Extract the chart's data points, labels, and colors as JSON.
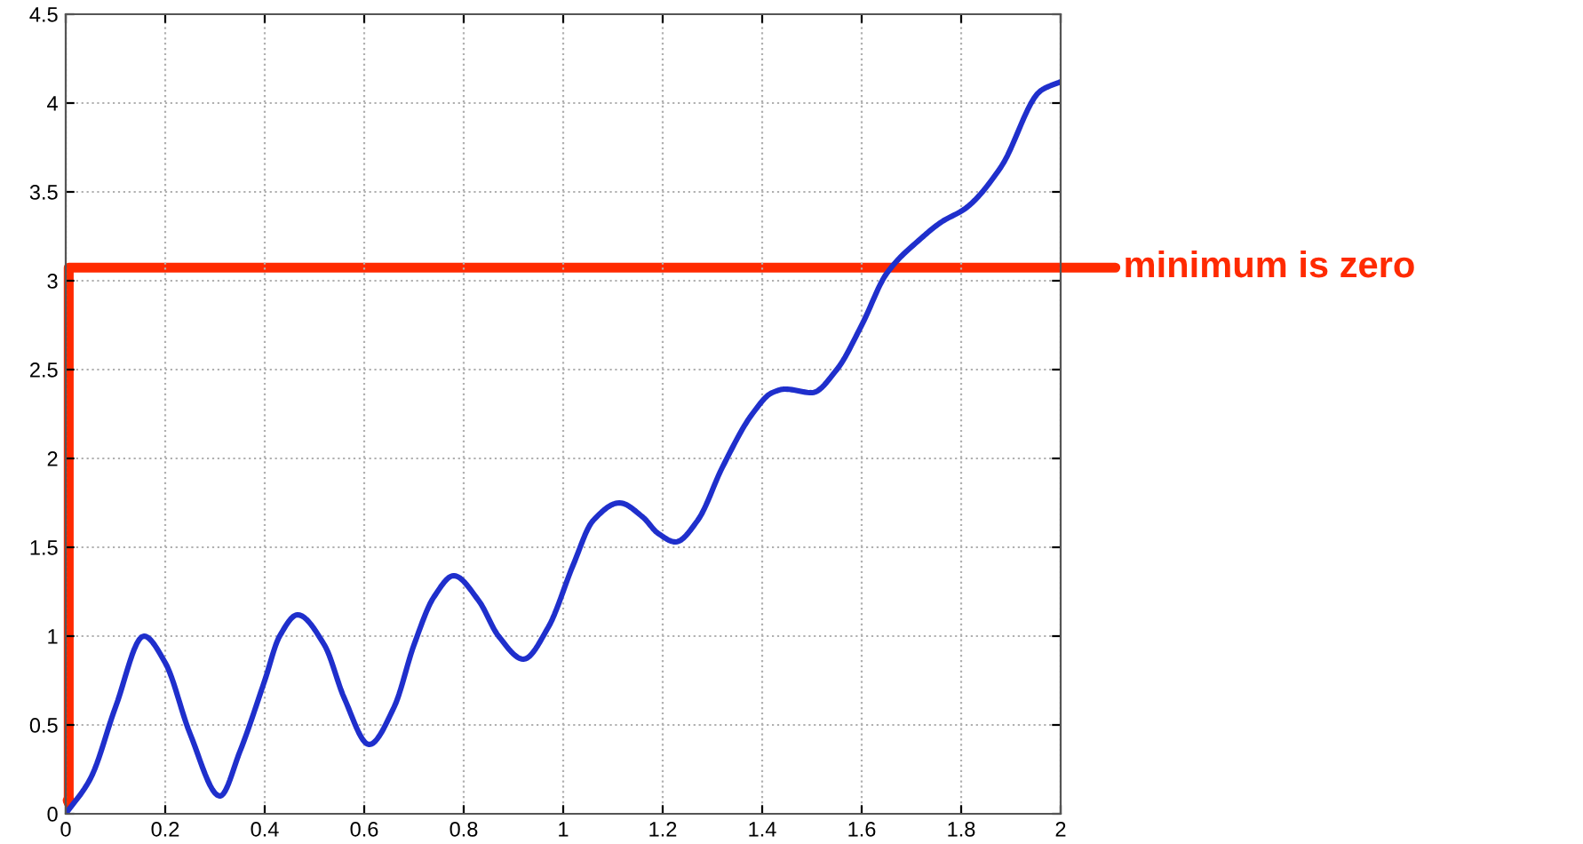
{
  "chart_data": {
    "type": "line",
    "x": [
      0,
      0.05,
      0.1,
      0.157,
      0.2,
      0.25,
      0.31,
      0.35,
      0.4,
      0.43,
      0.466,
      0.52,
      0.56,
      0.61,
      0.66,
      0.7,
      0.74,
      0.78,
      0.83,
      0.87,
      0.92,
      0.97,
      1.02,
      1.06,
      1.113,
      1.16,
      1.19,
      1.226,
      1.27,
      1.32,
      1.38,
      1.42,
      1.446,
      1.5,
      1.55,
      1.6,
      1.65,
      1.72,
      1.76,
      1.81,
      1.88,
      1.96,
      2.0
    ],
    "series": [
      {
        "color": "#1f2fcc",
        "values": [
          0,
          0.2,
          0.6,
          1.0,
          0.85,
          0.45,
          0.1,
          0.35,
          0.75,
          1.0,
          1.12,
          0.95,
          0.65,
          0.39,
          0.6,
          0.95,
          1.22,
          1.34,
          1.2,
          1.0,
          0.87,
          1.05,
          1.4,
          1.65,
          1.75,
          1.67,
          1.58,
          1.53,
          1.65,
          1.95,
          2.25,
          2.37,
          2.39,
          2.37,
          2.5,
          2.75,
          3.04,
          3.24,
          3.33,
          3.41,
          3.64,
          4.07,
          4.12
        ]
      }
    ],
    "xlim": [
      0,
      2
    ],
    "xticks": [
      0,
      0.2,
      0.4,
      0.6,
      0.8,
      1,
      1.2,
      1.4,
      1.6,
      1.8,
      2
    ],
    "ylim": [
      0,
      4.5
    ],
    "yticks": [
      0,
      0.5,
      1,
      1.5,
      2,
      2.5,
      3,
      3.5,
      4,
      4.5
    ],
    "grid": true,
    "marker": "none",
    "line_style": "solid",
    "annotations": [
      "minimum is zero"
    ]
  }
}
